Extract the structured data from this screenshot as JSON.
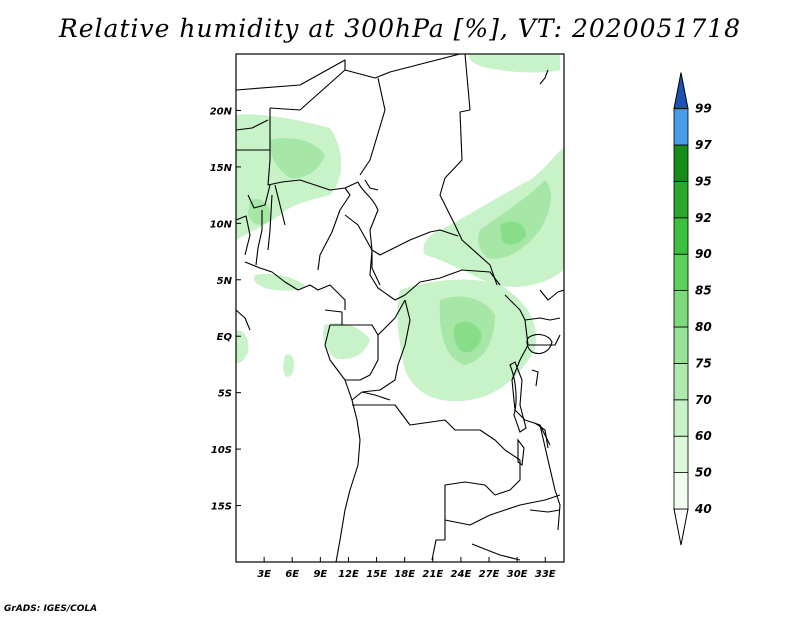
{
  "title": "Relative humidity at 300hPa [%], VT: 2020051718",
  "credit": "GrADS: IGES/COLA",
  "map": {
    "x_ticks": [
      "3E",
      "6E",
      "9E",
      "12E",
      "15E",
      "18E",
      "21E",
      "24E",
      "27E",
      "30E",
      "33E"
    ],
    "y_ticks": [
      "20N",
      "15N",
      "10N",
      "5N",
      "EQ",
      "5S",
      "10S",
      "15S"
    ],
    "lon_range": [
      0,
      35
    ],
    "lat_range": [
      -20,
      25
    ]
  },
  "colorbar": {
    "labels": [
      "40",
      "50",
      "60",
      "70",
      "75",
      "80",
      "85",
      "90",
      "92",
      "95",
      "97",
      "99"
    ],
    "colors": [
      "#f0fdf0",
      "#dcf8dc",
      "#c6f2c6",
      "#aeeaae",
      "#96e296",
      "#7cd97c",
      "#5ccf5c",
      "#3ebf3e",
      "#2aa82a",
      "#178c17",
      "#4a9be8",
      "#2f74d6",
      "#1a52b4"
    ]
  }
}
